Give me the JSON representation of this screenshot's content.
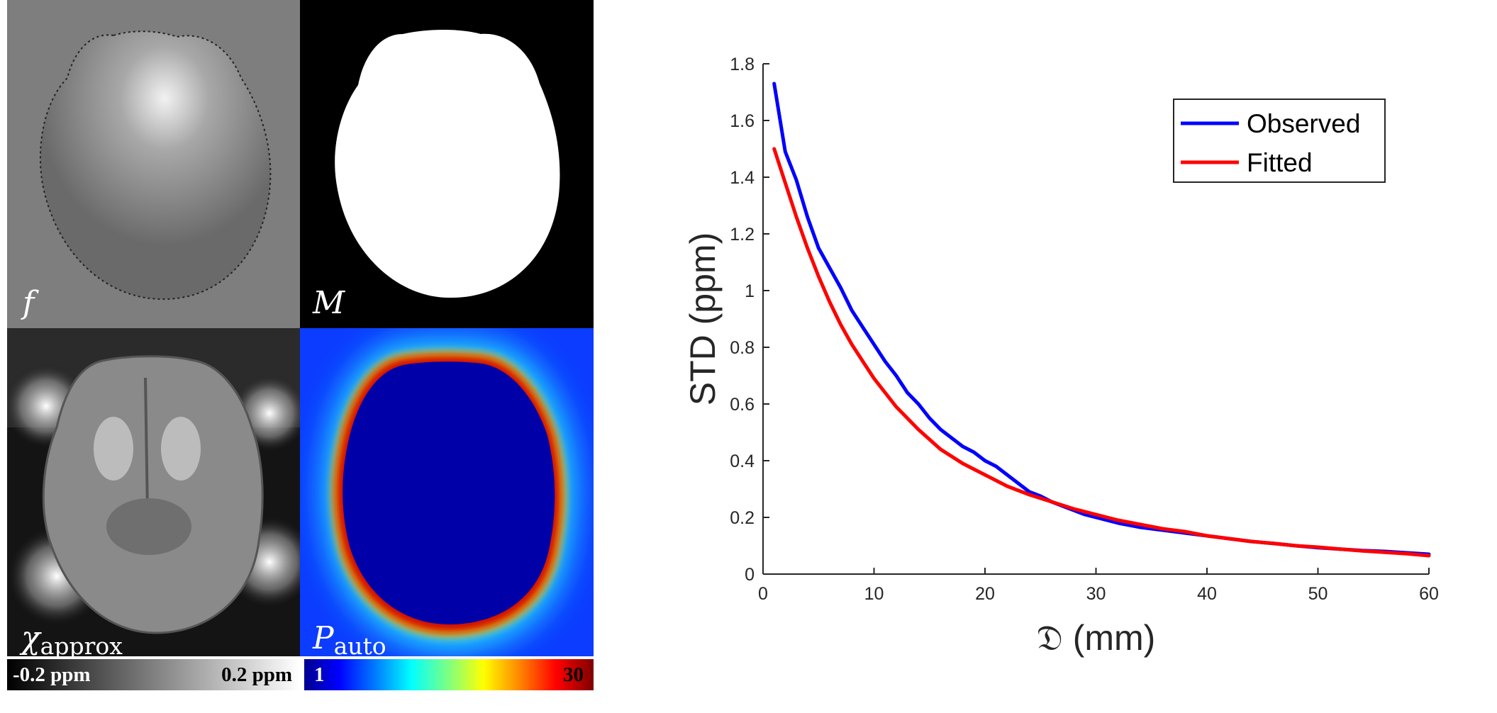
{
  "panels": {
    "f": {
      "label": "f"
    },
    "m": {
      "label": "M"
    },
    "chi": {
      "label_main": "χ",
      "label_sub": "approx"
    },
    "p": {
      "label_main": "P",
      "label_sub": "auto"
    }
  },
  "colorbars": {
    "gray": {
      "min_label": "-0.2 ppm",
      "max_label": "0.2 ppm"
    },
    "jet": {
      "min_label": "1",
      "max_label": "30"
    }
  },
  "chart_data": {
    "type": "line",
    "xlabel": "𝔇  (mm)",
    "ylabel": "STD (ppm)",
    "xlim": [
      0,
      60
    ],
    "ylim": [
      0,
      1.8
    ],
    "xticks": [
      "0",
      "10",
      "20",
      "30",
      "40",
      "50",
      "60"
    ],
    "yticks": [
      "0",
      "0.2",
      "0.4",
      "0.6",
      "0.8",
      "1",
      "1.2",
      "1.4",
      "1.6",
      "1.8"
    ],
    "legend_position": "top-right",
    "series": [
      {
        "name": "Observed",
        "color": "#0000ff",
        "x": [
          1,
          2,
          3,
          4,
          5,
          6,
          7,
          8,
          9,
          10,
          11,
          12,
          13,
          14,
          15,
          16,
          17,
          18,
          19,
          20,
          21,
          22,
          23,
          24,
          25,
          26,
          27,
          28,
          29,
          30,
          32,
          34,
          36,
          38,
          40,
          42,
          44,
          46,
          48,
          50,
          52,
          54,
          56,
          58,
          60
        ],
        "y": [
          1.73,
          1.49,
          1.39,
          1.26,
          1.15,
          1.08,
          1.01,
          0.93,
          0.87,
          0.81,
          0.75,
          0.7,
          0.64,
          0.6,
          0.55,
          0.51,
          0.48,
          0.45,
          0.43,
          0.4,
          0.38,
          0.35,
          0.32,
          0.29,
          0.275,
          0.255,
          0.24,
          0.225,
          0.21,
          0.2,
          0.18,
          0.165,
          0.155,
          0.145,
          0.135,
          0.125,
          0.115,
          0.108,
          0.1,
          0.093,
          0.088,
          0.083,
          0.08,
          0.075,
          0.07
        ]
      },
      {
        "name": "Fitted",
        "color": "#ff0000",
        "x": [
          1,
          2,
          3,
          4,
          5,
          6,
          7,
          8,
          9,
          10,
          12,
          14,
          16,
          18,
          20,
          22,
          24,
          26,
          28,
          30,
          32,
          34,
          36,
          38,
          40,
          42,
          44,
          46,
          48,
          50,
          52,
          54,
          56,
          58,
          60
        ],
        "y": [
          1.5,
          1.38,
          1.26,
          1.15,
          1.05,
          0.96,
          0.88,
          0.81,
          0.75,
          0.69,
          0.59,
          0.51,
          0.44,
          0.39,
          0.35,
          0.31,
          0.28,
          0.255,
          0.23,
          0.21,
          0.19,
          0.175,
          0.16,
          0.15,
          0.135,
          0.125,
          0.115,
          0.108,
          0.1,
          0.095,
          0.088,
          0.082,
          0.077,
          0.072,
          0.065
        ]
      }
    ]
  }
}
